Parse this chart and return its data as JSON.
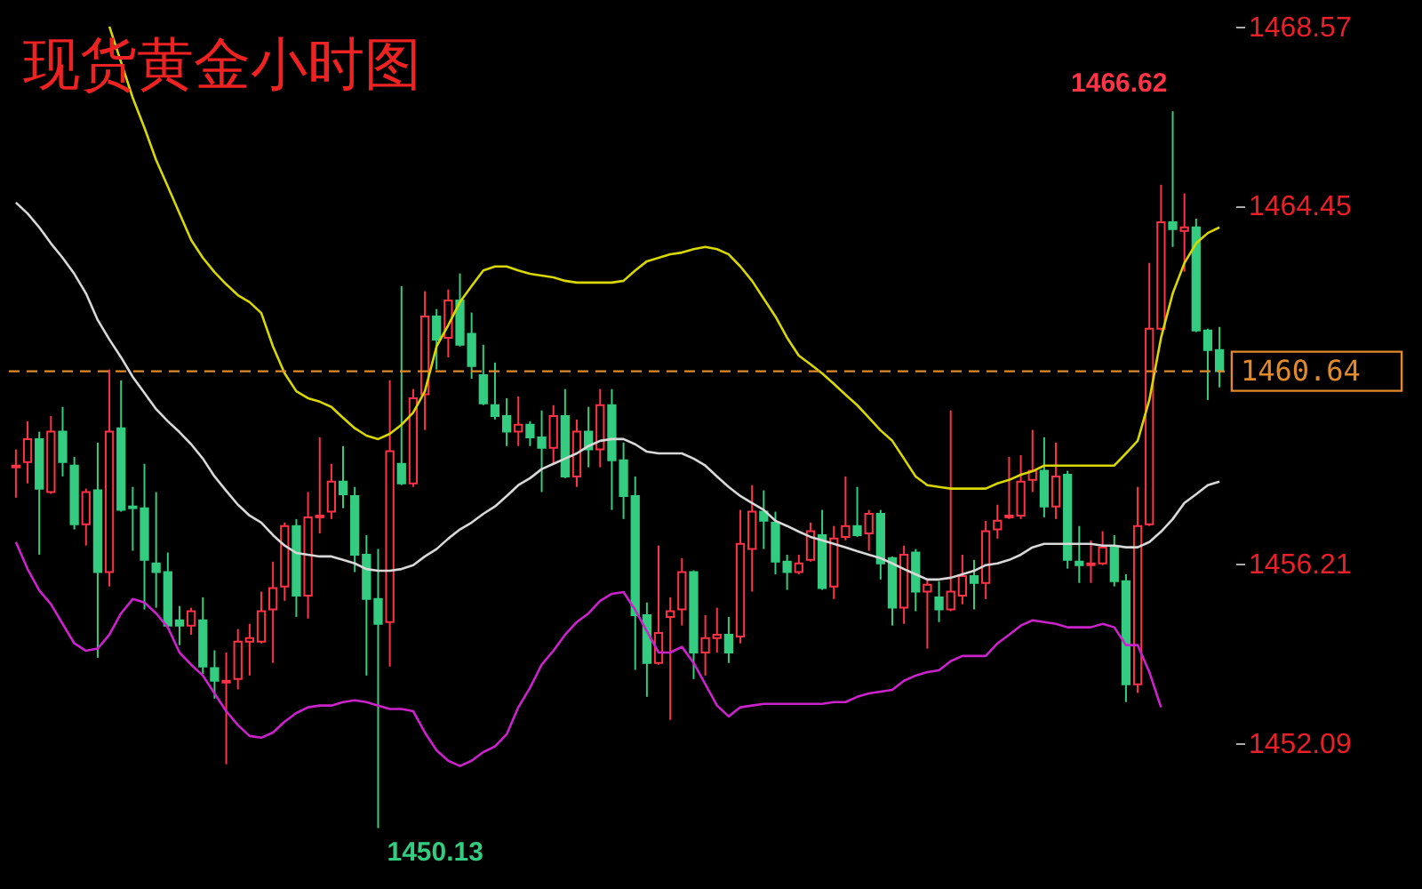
{
  "chart_data": {
    "type": "candlestick",
    "title": "现货黄金小时图",
    "categories": [
      null,
      null,
      null,
      null,
      null,
      null,
      null,
      null,
      null,
      null,
      null,
      null,
      null,
      null,
      null,
      null,
      null,
      null,
      null,
      null,
      null,
      null,
      null,
      null,
      null,
      null,
      null,
      null,
      null,
      null,
      null,
      null,
      null,
      null,
      null,
      null,
      null,
      null,
      null,
      null,
      null,
      null,
      null,
      null,
      null,
      null,
      null,
      null,
      null,
      null,
      null,
      null,
      null,
      null,
      null,
      null,
      null,
      null,
      null,
      null,
      null,
      null,
      null,
      null,
      null,
      null,
      null,
      null,
      null,
      null,
      null,
      null,
      null,
      null,
      null,
      null,
      null,
      null,
      null,
      null,
      null,
      null,
      null,
      null,
      null,
      null,
      null,
      null,
      null,
      null,
      null,
      null,
      null,
      null,
      null,
      null,
      null,
      null,
      null,
      null,
      null,
      null,
      null,
      null
    ],
    "ohlc": [
      [
        1458.43,
        1458.84,
        1457.73,
        1458.47
      ],
      [
        1458.55,
        1459.49,
        1458.06,
        1459.08
      ],
      [
        1459.08,
        1459.25,
        1456.42,
        1457.94
      ],
      [
        1457.86,
        1459.61,
        1457.82,
        1459.25
      ],
      [
        1459.25,
        1459.82,
        1458.22,
        1458.55
      ],
      [
        1458.47,
        1458.67,
        1457.0,
        1457.12
      ],
      [
        1457.12,
        1457.94,
        1456.63,
        1457.86
      ],
      [
        1457.9,
        1459.0,
        1454.05,
        1456.02
      ],
      [
        1456.02,
        1460.68,
        1455.69,
        1459.25
      ],
      [
        1459.33,
        1460.43,
        1457.41,
        1457.45
      ],
      [
        1457.53,
        1457.98,
        1456.51,
        1457.49
      ],
      [
        1457.49,
        1458.51,
        1455.16,
        1456.3
      ],
      [
        1456.22,
        1457.86,
        1455.2,
        1456.02
      ],
      [
        1456.02,
        1456.47,
        1454.75,
        1454.79
      ],
      [
        1454.91,
        1455.24,
        1454.34,
        1454.79
      ],
      [
        1454.79,
        1455.2,
        1454.58,
        1455.12
      ],
      [
        1454.91,
        1455.44,
        1453.68,
        1453.85
      ],
      [
        1453.81,
        1454.22,
        1453.11,
        1453.52
      ],
      [
        1453.48,
        1454.17,
        1451.6,
        1453.52
      ],
      [
        1453.56,
        1454.71,
        1453.32,
        1454.42
      ],
      [
        1454.42,
        1454.83,
        1453.64,
        1454.5
      ],
      [
        1454.42,
        1455.57,
        1454.38,
        1455.12
      ],
      [
        1455.16,
        1456.26,
        1453.93,
        1455.65
      ],
      [
        1455.69,
        1457.16,
        1455.36,
        1457.08
      ],
      [
        1457.08,
        1457.24,
        1454.99,
        1455.48
      ],
      [
        1455.48,
        1457.86,
        1454.95,
        1457.28
      ],
      [
        1457.28,
        1459.12,
        1456.91,
        1457.32
      ],
      [
        1457.41,
        1458.51,
        1457.24,
        1458.1
      ],
      [
        1458.1,
        1458.92,
        1457.49,
        1457.81
      ],
      [
        1457.77,
        1457.98,
        1456.02,
        1456.42
      ],
      [
        1456.42,
        1456.87,
        1453.64,
        1455.4
      ],
      [
        1455.4,
        1456.55,
        1450.13,
        1454.83
      ],
      [
        1454.87,
        1460.43,
        1453.85,
        1458.8
      ],
      [
        1458.51,
        1462.6,
        1458.02,
        1458.06
      ],
      [
        1458.06,
        1460.23,
        1457.98,
        1460.02
      ],
      [
        1460.11,
        1462.48,
        1459.29,
        1461.9
      ],
      [
        1461.9,
        1462.07,
        1460.68,
        1461.37
      ],
      [
        1461.41,
        1462.52,
        1460.96,
        1462.27
      ],
      [
        1462.27,
        1462.89,
        1461.21,
        1461.25
      ],
      [
        1461.5,
        1461.99,
        1460.47,
        1460.76
      ],
      [
        1460.55,
        1461.25,
        1459.86,
        1459.9
      ],
      [
        1459.86,
        1460.84,
        1459.53,
        1459.61
      ],
      [
        1459.61,
        1460.02,
        1458.92,
        1459.25
      ],
      [
        1459.25,
        1460.06,
        1458.92,
        1459.41
      ],
      [
        1459.41,
        1459.49,
        1458.92,
        1459.12
      ],
      [
        1459.12,
        1459.74,
        1457.86,
        1458.88
      ],
      [
        1458.88,
        1459.86,
        1458.51,
        1459.61
      ],
      [
        1459.61,
        1460.23,
        1458.18,
        1458.22
      ],
      [
        1458.22,
        1459.53,
        1457.98,
        1459.25
      ],
      [
        1459.25,
        1459.82,
        1458.43,
        1458.84
      ],
      [
        1458.84,
        1460.23,
        1458.43,
        1459.86
      ],
      [
        1459.86,
        1460.23,
        1457.45,
        1458.59
      ],
      [
        1458.59,
        1459.0,
        1457.24,
        1457.77
      ],
      [
        1457.77,
        1458.22,
        1453.77,
        1455.03
      ],
      [
        1455.03,
        1455.32,
        1453.15,
        1453.93
      ],
      [
        1453.93,
        1456.63,
        1453.89,
        1454.62
      ],
      [
        1454.99,
        1455.44,
        1452.62,
        1455.12
      ],
      [
        1455.16,
        1456.34,
        1454.79,
        1456.02
      ],
      [
        1456.02,
        1456.06,
        1453.56,
        1454.17
      ],
      [
        1454.17,
        1455.03,
        1453.64,
        1454.5
      ],
      [
        1454.5,
        1455.2,
        1454.17,
        1454.58
      ],
      [
        1454.58,
        1454.99,
        1453.93,
        1454.17
      ],
      [
        1454.54,
        1457.45,
        1454.38,
        1456.67
      ],
      [
        1456.55,
        1458.02,
        1455.57,
        1457.41
      ],
      [
        1457.41,
        1457.9,
        1456.55,
        1457.2
      ],
      [
        1457.16,
        1457.41,
        1455.97,
        1456.26
      ],
      [
        1456.26,
        1456.42,
        1455.61,
        1456.02
      ],
      [
        1456.02,
        1456.42,
        1455.97,
        1456.22
      ],
      [
        1456.3,
        1457.16,
        1456.26,
        1456.96
      ],
      [
        1456.87,
        1457.45,
        1455.61,
        1455.65
      ],
      [
        1455.69,
        1457.08,
        1455.4,
        1456.79
      ],
      [
        1456.83,
        1458.22,
        1456.75,
        1457.08
      ],
      [
        1457.08,
        1457.98,
        1456.83,
        1456.87
      ],
      [
        1456.91,
        1457.45,
        1456.51,
        1457.36
      ],
      [
        1457.36,
        1457.45,
        1455.85,
        1456.22
      ],
      [
        1456.34,
        1456.38,
        1454.79,
        1455.2
      ],
      [
        1455.2,
        1456.63,
        1454.83,
        1456.42
      ],
      [
        1456.47,
        1456.55,
        1455.12,
        1455.57
      ],
      [
        1455.57,
        1455.85,
        1454.26,
        1455.73
      ],
      [
        1455.44,
        1455.81,
        1454.87,
        1455.16
      ],
      [
        1455.16,
        1459.74,
        1455.12,
        1455.57
      ],
      [
        1455.48,
        1456.42,
        1455.28,
        1455.93
      ],
      [
        1455.93,
        1456.3,
        1455.16,
        1455.77
      ],
      [
        1455.77,
        1457.2,
        1455.4,
        1456.96
      ],
      [
        1457.0,
        1457.57,
        1456.79,
        1457.2
      ],
      [
        1457.28,
        1458.67,
        1457.24,
        1457.32
      ],
      [
        1457.32,
        1458.71,
        1457.24,
        1458.1
      ],
      [
        1458.14,
        1459.29,
        1457.86,
        1458.35
      ],
      [
        1458.35,
        1459.12,
        1457.28,
        1457.53
      ],
      [
        1457.53,
        1459.0,
        1457.24,
        1458.22
      ],
      [
        1458.26,
        1458.35,
        1456.1,
        1456.3
      ],
      [
        1456.26,
        1457.08,
        1455.77,
        1456.18
      ],
      [
        1456.18,
        1456.75,
        1455.77,
        1456.22
      ],
      [
        1456.22,
        1456.96,
        1456.18,
        1456.59
      ],
      [
        1456.59,
        1456.87,
        1455.69,
        1455.81
      ],
      [
        1455.81,
        1455.97,
        1453.03,
        1453.44
      ],
      [
        1453.44,
        1457.98,
        1453.24,
        1457.08
      ],
      [
        1457.12,
        1463.13,
        1457.08,
        1461.62
      ],
      [
        1461.62,
        1464.93,
        1461.58,
        1464.07
      ],
      [
        1464.07,
        1466.62,
        1463.5,
        1463.91
      ],
      [
        1463.87,
        1464.73,
        1462.93,
        1463.95
      ],
      [
        1463.95,
        1464.15,
        1461.54,
        1461.58
      ],
      [
        1461.58,
        1461.62,
        1459.98,
        1461.13
      ],
      [
        1461.13,
        1461.66,
        1460.27,
        1460.64
      ]
    ],
    "colors": [
      "#ff3346",
      "#ff3346",
      "#33cc80",
      "#ff3346",
      "#33cc80",
      "#33cc80",
      "#ff3346",
      "#33cc80",
      "#ff3346",
      "#33cc80",
      "#33cc80",
      "#33cc80",
      "#33cc80",
      "#33cc80",
      "#33cc80",
      "#ff3346",
      "#33cc80",
      "#33cc80",
      "#ff3346",
      "#ff3346",
      "#ff3346",
      "#ff3346",
      "#ff3346",
      "#ff3346",
      "#33cc80",
      "#ff3346",
      "#ff3346",
      "#ff3346",
      "#33cc80",
      "#33cc80",
      "#33cc80",
      "#33cc80",
      "#ff3346",
      "#33cc80",
      "#ff3346",
      "#ff3346",
      "#33cc80",
      "#ff3346",
      "#33cc80",
      "#33cc80",
      "#33cc80",
      "#33cc80",
      "#33cc80",
      "#ff3346",
      "#33cc80",
      "#33cc80",
      "#ff3346",
      "#33cc80",
      "#ff3346",
      "#33cc80",
      "#ff3346",
      "#33cc80",
      "#33cc80",
      "#33cc80",
      "#33cc80",
      "#ff3346",
      "#ff3346",
      "#ff3346",
      "#33cc80",
      "#ff3346",
      "#ff3346",
      "#33cc80",
      "#ff3346",
      "#ff3346",
      "#33cc80",
      "#33cc80",
      "#33cc80",
      "#ff3346",
      "#ff3346",
      "#33cc80",
      "#ff3346",
      "#ff3346",
      "#33cc80",
      "#ff3346",
      "#33cc80",
      "#33cc80",
      "#ff3346",
      "#33cc80",
      "#ff3346",
      "#33cc80",
      "#ff3346",
      "#ff3346",
      "#33cc80",
      "#ff3346",
      "#ff3346",
      "#ff3346",
      "#ff3346",
      "#ff3346",
      "#33cc80",
      "#ff3346",
      "#33cc80",
      "#33cc80",
      "#ff3346",
      "#ff3346",
      "#33cc80",
      "#33cc80",
      "#ff3346",
      "#ff3346",
      "#ff3346",
      "#33cc80",
      "#ff3346",
      "#33cc80",
      "#33cc80",
      "#33cc80"
    ],
    "series": [
      {
        "type": "line",
        "color": "#d8d800",
        "values": [
          null,
          null,
          null,
          null,
          null,
          null,
          null,
          null,
          1468.57,
          1467.75,
          1466.93,
          1466.24,
          1465.5,
          1464.89,
          1464.27,
          1463.66,
          1463.25,
          1462.92,
          1462.64,
          1462.39,
          1462.23,
          1461.98,
          1461.21,
          1460.59,
          1460.18,
          1460.02,
          1459.94,
          1459.82,
          1459.57,
          1459.33,
          1459.16,
          1459.08,
          1459.2,
          1459.41,
          1459.69,
          1460.18,
          1461.21,
          1461.7,
          1462.23,
          1462.6,
          1462.96,
          1463.05,
          1463.05,
          1462.96,
          1462.88,
          1462.84,
          1462.8,
          1462.72,
          1462.68,
          1462.68,
          1462.68,
          1462.68,
          1462.72,
          1462.96,
          1463.17,
          1463.25,
          1463.33,
          1463.37,
          1463.45,
          1463.5,
          1463.45,
          1463.33,
          1463.05,
          1462.72,
          1462.31,
          1461.9,
          1461.41,
          1461.0,
          1460.8,
          1460.59,
          1460.35,
          1460.1,
          1459.86,
          1459.57,
          1459.28,
          1459.04,
          1458.63,
          1458.22,
          1458.02,
          1457.98,
          1457.94,
          1457.94,
          1457.94,
          1457.94,
          1458.06,
          1458.14,
          1458.26,
          1458.34,
          1458.47,
          1458.47,
          1458.47,
          1458.47,
          1458.47,
          1458.47,
          1458.47,
          1458.75,
          1459.04,
          1459.98,
          1461.41,
          1462.43,
          1463.13,
          1463.58,
          1463.82,
          1463.95
        ]
      },
      {
        "type": "line",
        "color": "#d8d8d8",
        "values": [
          1464.52,
          1464.27,
          1463.95,
          1463.58,
          1463.25,
          1462.88,
          1462.43,
          1461.82,
          1461.37,
          1460.96,
          1460.51,
          1460.14,
          1459.77,
          1459.49,
          1459.24,
          1458.96,
          1458.63,
          1458.22,
          1457.89,
          1457.57,
          1457.32,
          1457.16,
          1456.87,
          1456.63,
          1456.46,
          1456.42,
          1456.38,
          1456.38,
          1456.3,
          1456.22,
          1456.09,
          1456.05,
          1456.05,
          1456.09,
          1456.18,
          1456.38,
          1456.55,
          1456.79,
          1457.0,
          1457.16,
          1457.36,
          1457.53,
          1457.77,
          1458.02,
          1458.18,
          1458.39,
          1458.51,
          1458.63,
          1458.75,
          1458.92,
          1459.04,
          1459.08,
          1459.08,
          1458.96,
          1458.79,
          1458.75,
          1458.75,
          1458.75,
          1458.63,
          1458.47,
          1458.22,
          1457.98,
          1457.77,
          1457.61,
          1457.45,
          1457.2,
          1457.08,
          1456.95,
          1456.83,
          1456.75,
          1456.67,
          1456.59,
          1456.5,
          1456.42,
          1456.34,
          1456.22,
          1456.09,
          1455.97,
          1455.85,
          1455.85,
          1455.89,
          1455.97,
          1456.05,
          1456.18,
          1456.22,
          1456.3,
          1456.42,
          1456.59,
          1456.67,
          1456.67,
          1456.67,
          1456.67,
          1456.67,
          1456.63,
          1456.63,
          1456.59,
          1456.59,
          1456.71,
          1456.95,
          1457.24,
          1457.61,
          1457.81,
          1458.02,
          1458.1
        ]
      },
      {
        "type": "line",
        "color": "#cc22cc",
        "values": [
          1456.71,
          1456.09,
          1455.6,
          1455.28,
          1454.83,
          1454.38,
          1454.21,
          1454.26,
          1454.58,
          1455.07,
          1455.4,
          1455.32,
          1455.07,
          1454.75,
          1454.17,
          1453.89,
          1453.64,
          1453.23,
          1452.82,
          1452.5,
          1452.25,
          1452.21,
          1452.33,
          1452.58,
          1452.78,
          1452.91,
          1452.95,
          1452.95,
          1453.03,
          1453.07,
          1453.03,
          1452.95,
          1452.87,
          1452.87,
          1452.82,
          1452.33,
          1451.92,
          1451.68,
          1451.56,
          1451.68,
          1451.88,
          1452.01,
          1452.29,
          1452.91,
          1453.36,
          1453.89,
          1454.21,
          1454.58,
          1454.87,
          1455.07,
          1455.36,
          1455.52,
          1455.56,
          1455.15,
          1454.66,
          1454.17,
          1454.17,
          1454.3,
          1453.93,
          1453.44,
          1452.95,
          1452.7,
          1452.91,
          1452.95,
          1452.99,
          1452.99,
          1452.99,
          1452.99,
          1452.99,
          1452.99,
          1453.03,
          1453.03,
          1453.15,
          1453.23,
          1453.27,
          1453.31,
          1453.52,
          1453.64,
          1453.72,
          1453.76,
          1453.97,
          1454.09,
          1454.09,
          1454.09,
          1454.38,
          1454.58,
          1454.79,
          1454.91,
          1454.87,
          1454.83,
          1454.75,
          1454.75,
          1454.75,
          1454.83,
          1454.75,
          1454.34,
          1454.34,
          1453.72,
          1452.91,
          null,
          null,
          null,
          null,
          null
        ]
      }
    ],
    "ylim": [
      1448.73,
      1469.18
    ],
    "yticks": [
      1468.57,
      1464.45,
      1456.21,
      1452.09
    ],
    "ref_lines": [
      {
        "axis": "y",
        "value": 1460.64,
        "label": "1460.64",
        "color": "#e08a2a",
        "line_style": "dashed"
      }
    ],
    "annotations": [
      "1466.62",
      "1450.13"
    ],
    "tick_labels": "y",
    "grid": false
  }
}
